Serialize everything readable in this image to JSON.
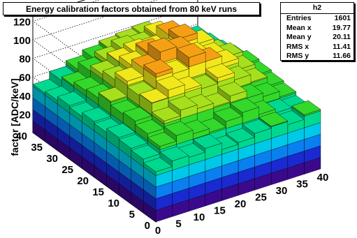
{
  "chart_data": {
    "type": "lego",
    "title": "Energy calibration factors obtained from 80 keV runs",
    "zlabel": "factor [ADC/keV]",
    "x_ticks": [
      "0",
      "5",
      "10",
      "15",
      "20",
      "25",
      "30",
      "35",
      "40"
    ],
    "y_ticks": [
      "0",
      "5",
      "10",
      "15",
      "20",
      "25",
      "30",
      "35",
      "40"
    ],
    "z_ticks": [
      "20",
      "40",
      "60",
      "80",
      "100",
      "120"
    ],
    "xlim": [
      0,
      40
    ],
    "ylim": [
      0,
      40
    ],
    "zlim": [
      0,
      125
    ],
    "grid": true,
    "colormap": [
      "#3b0a8c",
      "#1a2ad0",
      "#0a7ff0",
      "#00c8e8",
      "#00d890",
      "#33d82a",
      "#a6e01c",
      "#f0e81a",
      "#f5a014",
      "#e02a10"
    ],
    "grid_values": [
      [
        54,
        60,
        58,
        62,
        55,
        57,
        61,
        63,
        59,
        64
      ],
      [
        58,
        66,
        72,
        68,
        64,
        70,
        74,
        66,
        62,
        60
      ],
      [
        60,
        70,
        78,
        84,
        80,
        76,
        82,
        74,
        70,
        64
      ],
      [
        62,
        74,
        88,
        96,
        90,
        86,
        92,
        84,
        76,
        66
      ],
      [
        58,
        72,
        86,
        104,
        98,
        110,
        100,
        92,
        80,
        68
      ],
      [
        60,
        76,
        92,
        100,
        112,
        108,
        96,
        90,
        84,
        70
      ],
      [
        56,
        70,
        84,
        94,
        102,
        96,
        106,
        94,
        78,
        66
      ],
      [
        58,
        68,
        80,
        88,
        92,
        90,
        100,
        86,
        74,
        62
      ],
      [
        54,
        64,
        74,
        80,
        86,
        84,
        90,
        78,
        68,
        60
      ],
      [
        52,
        60,
        66,
        72,
        76,
        78,
        80,
        70,
        62,
        58
      ]
    ]
  },
  "stats": {
    "name": "h2",
    "rows": [
      {
        "label": "Entries",
        "value": "1601"
      },
      {
        "label": "Mean x",
        "value": "19.77"
      },
      {
        "label": "Mean y",
        "value": "20.11"
      },
      {
        "label": "RMS x",
        "value": "11.41"
      },
      {
        "label": "RMS y",
        "value": "11.66"
      }
    ]
  }
}
